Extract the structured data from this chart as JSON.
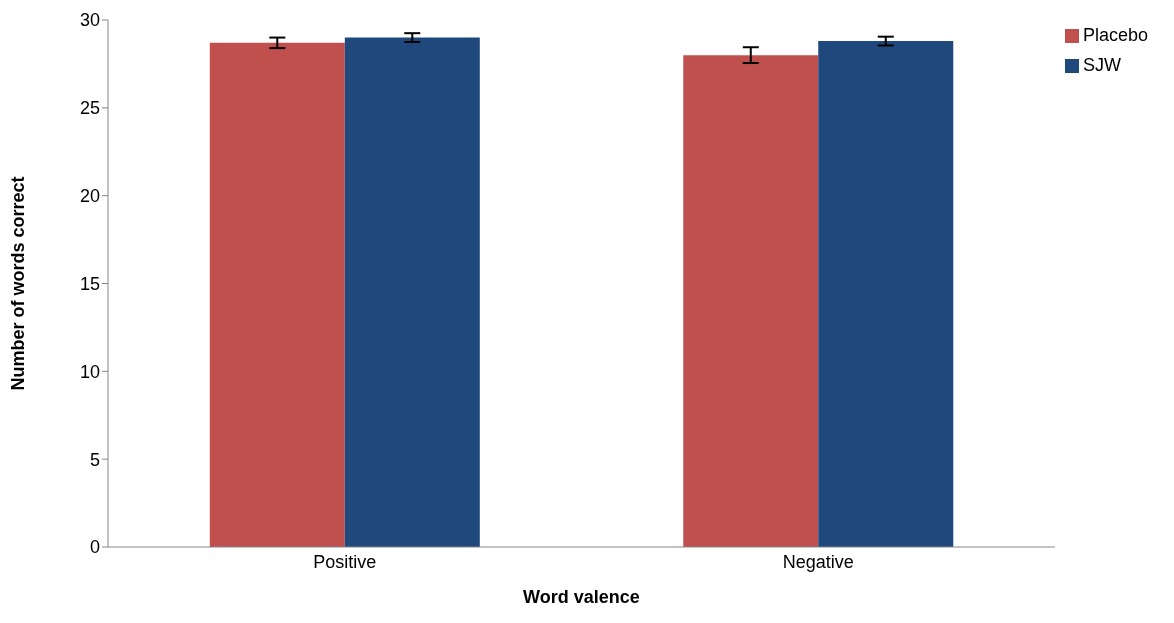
{
  "chart_data": {
    "type": "bar",
    "xlabel": "Word valence",
    "ylabel": "Number of words correct",
    "categories": [
      "Positive",
      "Negative"
    ],
    "series": [
      {
        "name": "Placebo",
        "color": "#c0504d",
        "values": [
          28.7,
          28.0
        ],
        "errors": [
          0.3,
          0.45
        ]
      },
      {
        "name": "SJW",
        "color": "#1f497d",
        "values": [
          29.0,
          28.8
        ],
        "errors": [
          0.25,
          0.25
        ]
      }
    ],
    "ylim": [
      0,
      30
    ],
    "yticks": [
      0,
      5,
      10,
      15,
      20,
      25,
      30
    ],
    "grid": false,
    "legend": "top right"
  }
}
